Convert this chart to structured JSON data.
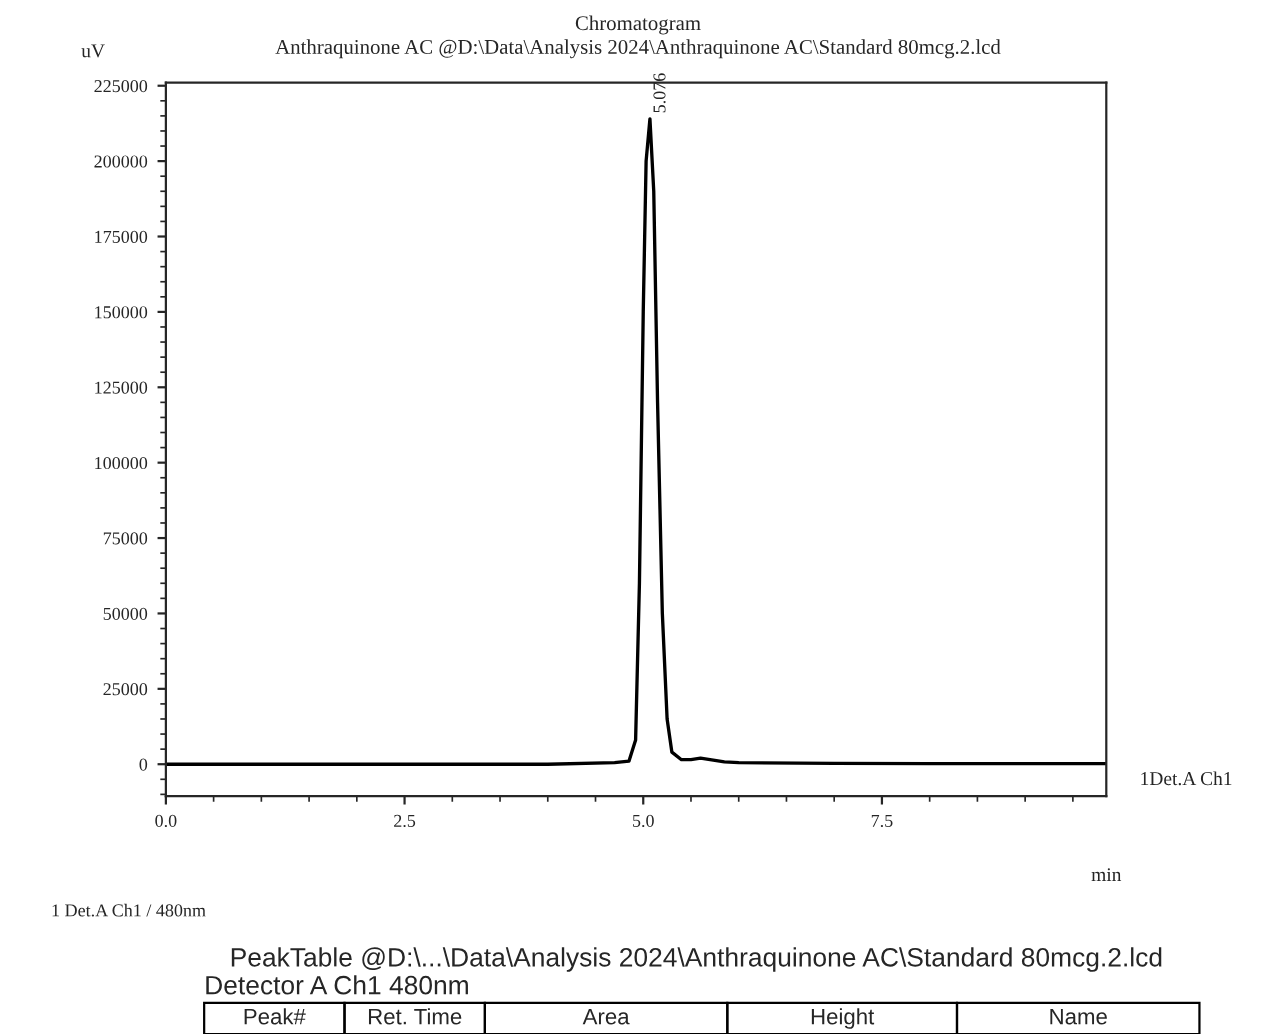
{
  "chart_data": {
    "type": "line",
    "title": "Chromatogram",
    "subtitle": "Anthraquinone AC @D:\\Data\\Analysis 2024\\Anthraquinone AC\\Standard 80mcg.2.lcd",
    "xlabel": "min",
    "ylabel": "uV",
    "x": [
      0,
      1,
      2,
      3,
      4,
      4.7,
      4.85,
      4.92,
      4.96,
      5.0,
      5.03,
      5.07,
      5.11,
      5.15,
      5.2,
      5.25,
      5.3,
      5.4,
      5.5,
      5.6,
      5.7,
      5.85,
      6.0,
      7,
      8,
      9,
      9.85
    ],
    "series": [
      {
        "name": "1Det.A Ch1",
        "color": "#000000",
        "values": [
          0,
          0,
          0,
          0,
          0,
          500,
          1000,
          8000,
          60000,
          150000,
          200000,
          214000,
          190000,
          120000,
          50000,
          15000,
          4000,
          1500,
          1500,
          2000,
          1500,
          800,
          500,
          300,
          200,
          200,
          200
        ]
      }
    ],
    "xlim": [
      0,
      9.85
    ],
    "ylim": [
      -10600,
      226000
    ],
    "xticks": [
      {
        "value": 0,
        "label": "0.0"
      },
      2.5,
      {
        "value": 5,
        "label": "5.0"
      },
      7.5
    ],
    "yticks": [
      0,
      25000,
      50000,
      75000,
      100000,
      125000,
      150000,
      175000,
      200000,
      225000
    ],
    "grid": false,
    "legend": false,
    "annotations": [
      {
        "text": "5.076",
        "x": 5.07,
        "y": 214000
      },
      "1 Det.A Ch1 / 480nm",
      "PeakTable @D:\\...\\Data\\Analysis 2024\\Anthraquinone AC\\Standard 80mcg.2.lcd",
      "Detector A Ch1 480nm",
      "Peak#",
      "Ret. Time",
      "Area",
      "Height",
      "Name"
    ]
  }
}
